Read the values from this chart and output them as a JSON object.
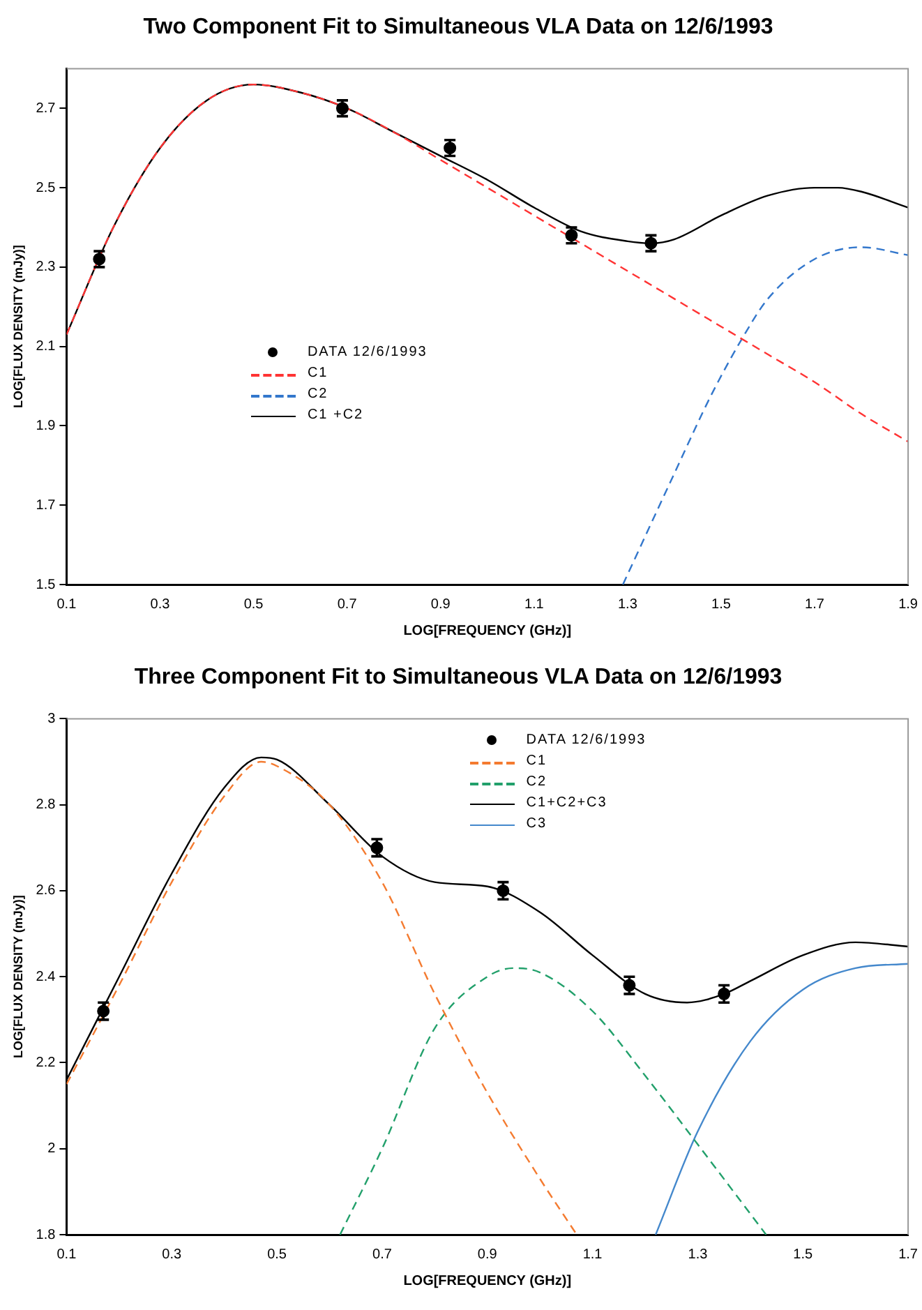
{
  "chart_data": [
    {
      "type": "line",
      "title": "Two Component Fit to Simultaneous VLA Data on 12/6/1993",
      "xlabel": "LOG[FREQUENCY (GHz)]",
      "ylabel": "LOG[FLUX DENSITY (mJy)]",
      "xlim": [
        0.1,
        1.9
      ],
      "xticks": [
        0.1,
        0.3,
        0.5,
        0.7,
        0.9,
        1.1,
        1.3,
        1.5,
        1.7,
        1.9
      ],
      "ylim": [
        1.5,
        2.8
      ],
      "yticks": [
        1.5,
        1.7,
        1.9,
        2.1,
        2.3,
        2.5,
        2.7
      ],
      "grid": false,
      "legend": "left",
      "series": [
        {
          "name": "DATA 12/6/1993",
          "type": "scatter",
          "marker": "circle",
          "color": "#000000",
          "x": [
            0.17,
            0.69,
            0.92,
            1.18,
            1.35
          ],
          "values": [
            2.32,
            2.7,
            2.6,
            2.38,
            2.36
          ],
          "errors": [
            0.02,
            0.02,
            0.02,
            0.02,
            0.02
          ]
        },
        {
          "name": "C1",
          "marker": "none",
          "line_style": "dashed",
          "color": "#ff3333",
          "x": [
            0.1,
            0.2,
            0.3,
            0.4,
            0.5,
            0.6,
            0.7,
            0.8,
            0.9,
            1.0,
            1.1,
            1.2,
            1.3,
            1.4,
            1.5,
            1.6,
            1.7,
            1.8,
            1.9
          ],
          "values": [
            2.13,
            2.4,
            2.6,
            2.72,
            2.76,
            2.74,
            2.7,
            2.64,
            2.57,
            2.5,
            2.43,
            2.36,
            2.29,
            2.22,
            2.15,
            2.08,
            2.01,
            1.93,
            1.86
          ]
        },
        {
          "name": "C2",
          "marker": "none",
          "line_style": "dashed",
          "color": "#3377cc",
          "x": [
            1.29,
            1.4,
            1.48,
            1.55,
            1.6,
            1.7,
            1.8,
            1.9
          ],
          "values": [
            1.5,
            1.78,
            1.98,
            2.13,
            2.22,
            2.32,
            2.35,
            2.33
          ]
        },
        {
          "name": "C1 +C2",
          "marker": "none",
          "line_style": "solid",
          "color": "#000000",
          "x": [
            0.1,
            0.2,
            0.3,
            0.4,
            0.5,
            0.6,
            0.7,
            0.8,
            0.9,
            1.0,
            1.1,
            1.2,
            1.3,
            1.35,
            1.4,
            1.5,
            1.6,
            1.7,
            1.75,
            1.8,
            1.9
          ],
          "values": [
            2.13,
            2.4,
            2.6,
            2.72,
            2.76,
            2.74,
            2.7,
            2.64,
            2.58,
            2.52,
            2.45,
            2.39,
            2.365,
            2.36,
            2.37,
            2.43,
            2.48,
            2.5,
            2.5,
            2.49,
            2.45
          ]
        }
      ]
    },
    {
      "type": "line",
      "title": "Three Component Fit to Simultaneous VLA Data on 12/6/1993",
      "xlabel": "LOG[FREQUENCY (GHz)]",
      "ylabel": "LOG[FLUX DENSITY (mJy)]",
      "xlim": [
        0.1,
        1.7
      ],
      "xticks": [
        0.1,
        0.3,
        0.5,
        0.7,
        0.9,
        1.1,
        1.3,
        1.5,
        1.7
      ],
      "ylim": [
        1.8,
        3
      ],
      "yticks": [
        1.8,
        2,
        2.2,
        2.4,
        2.6,
        2.8,
        3
      ],
      "grid": false,
      "legend": "top",
      "series": [
        {
          "name": "DATA 12/6/1993",
          "type": "scatter",
          "marker": "circle",
          "color": "#000000",
          "x": [
            0.17,
            0.69,
            0.93,
            1.17,
            1.35
          ],
          "values": [
            2.32,
            2.7,
            2.6,
            2.38,
            2.36
          ],
          "errors": [
            0.02,
            0.02,
            0.02,
            0.02,
            0.02
          ]
        },
        {
          "name": "C1",
          "marker": "none",
          "line_style": "dashed",
          "color": "#f47b30",
          "x": [
            0.1,
            0.2,
            0.3,
            0.4,
            0.47,
            0.5,
            0.6,
            0.7,
            0.8,
            0.9,
            1.0,
            1.07
          ],
          "values": [
            2.15,
            2.38,
            2.62,
            2.82,
            2.9,
            2.89,
            2.8,
            2.62,
            2.36,
            2.13,
            1.93,
            1.8
          ]
        },
        {
          "name": "C2",
          "marker": "none",
          "line_style": "dashed",
          "color": "#22a06b",
          "x": [
            0.62,
            0.7,
            0.8,
            0.9,
            0.95,
            1.0,
            1.1,
            1.2,
            1.3,
            1.43
          ],
          "values": [
            1.8,
            2.0,
            2.28,
            2.4,
            2.42,
            2.41,
            2.32,
            2.17,
            2.01,
            1.8
          ]
        },
        {
          "name": "C1+C2+C3",
          "marker": "none",
          "line_style": "solid",
          "color": "#000000",
          "x": [
            0.1,
            0.2,
            0.3,
            0.4,
            0.47,
            0.5,
            0.6,
            0.7,
            0.8,
            0.9,
            1.0,
            1.1,
            1.2,
            1.28,
            1.35,
            1.4,
            1.5,
            1.6,
            1.7
          ],
          "values": [
            2.16,
            2.4,
            2.64,
            2.84,
            2.91,
            2.905,
            2.8,
            2.68,
            2.62,
            2.61,
            2.55,
            2.45,
            2.36,
            2.34,
            2.36,
            2.39,
            2.45,
            2.48,
            2.47
          ]
        },
        {
          "name": "C3",
          "marker": "none",
          "line_style": "solid",
          "color": "#4488cc",
          "x": [
            1.22,
            1.3,
            1.4,
            1.5,
            1.6,
            1.7
          ],
          "values": [
            1.8,
            2.04,
            2.25,
            2.37,
            2.42,
            2.43
          ]
        }
      ]
    }
  ]
}
